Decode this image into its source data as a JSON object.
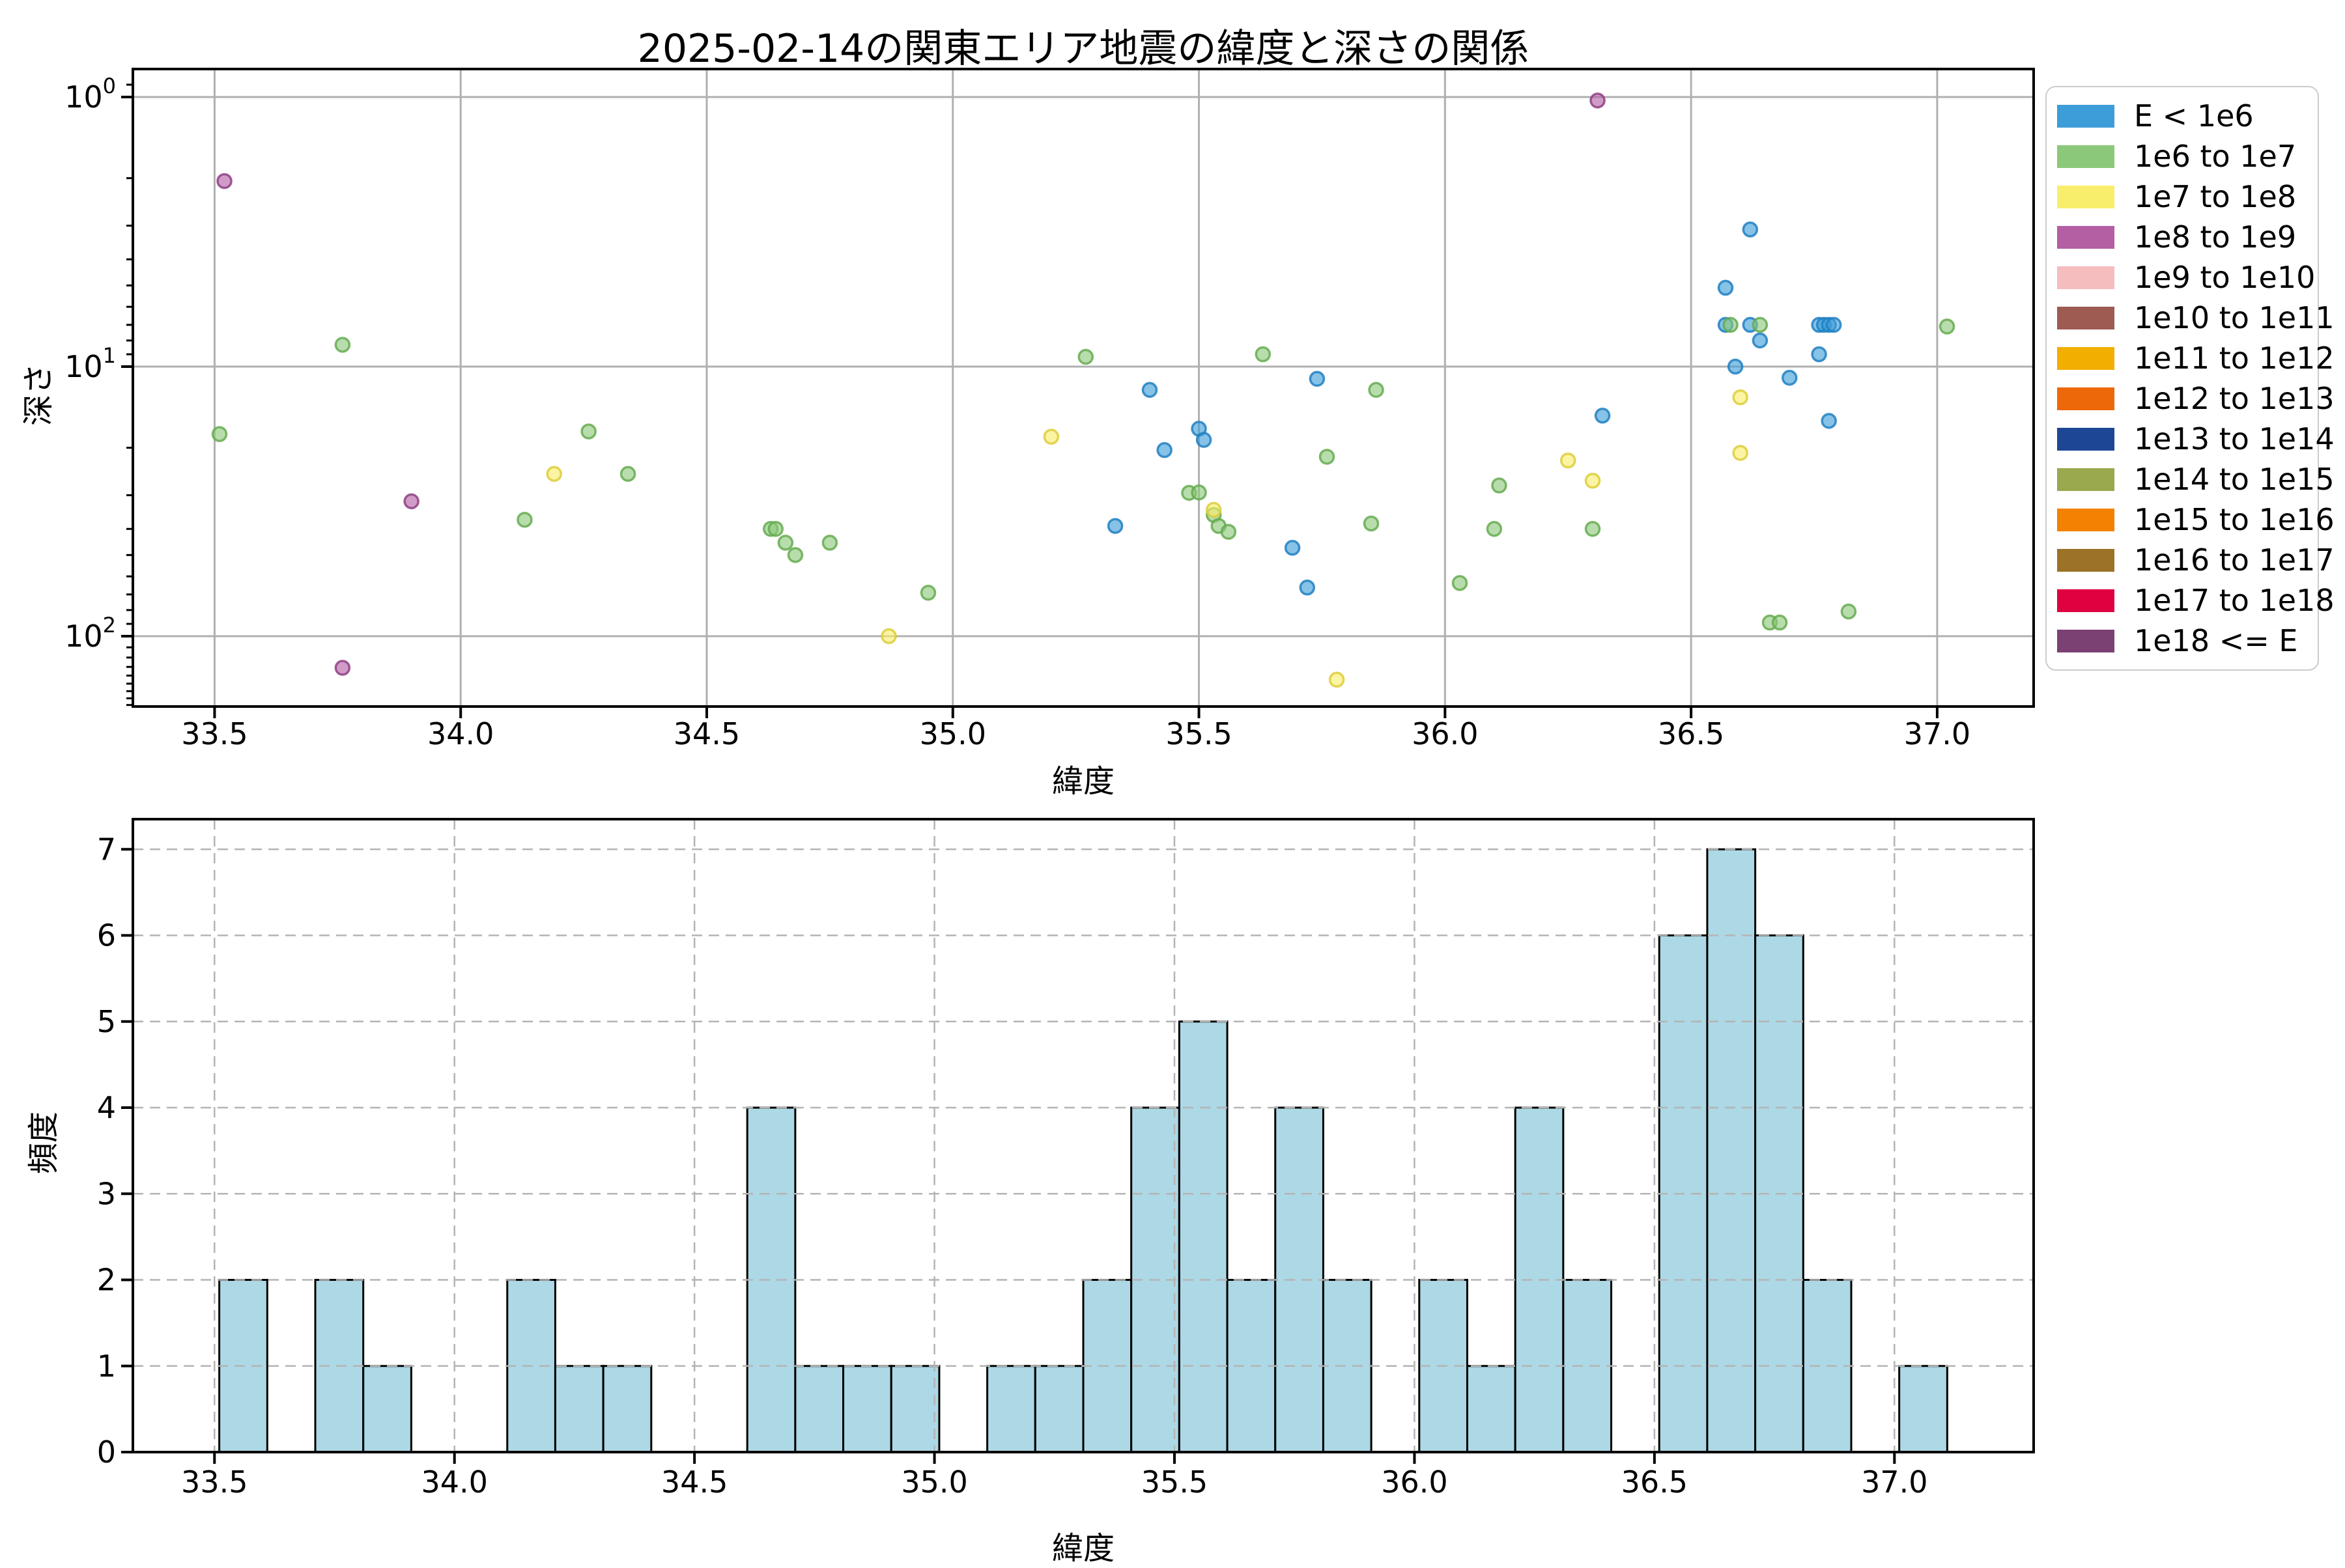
{
  "figure_title": "2025-02-14の関東エリア地震の緯度と深さの関係",
  "chart_data": [
    {
      "type": "scatter",
      "title": "2025-02-14の関東エリア地震の緯度と深さの関係",
      "xlabel": "緯度",
      "ylabel": "深さ",
      "x_ticks": [
        33.5,
        34.0,
        34.5,
        35.0,
        35.5,
        36.0,
        36.5,
        37.0
      ],
      "y_ticks": [
        1,
        10,
        100
      ],
      "xlim": [
        33.334,
        37.196
      ],
      "ylim": [
        0.79,
        182
      ],
      "y_scale": "log-inverted",
      "grid": "solid",
      "series": [
        {
          "name": "E < 1e6",
          "color": "#3d9dd8",
          "edge": "#2080c2",
          "points": [
            [
              35.33,
              39
            ],
            [
              35.4,
              12.2
            ],
            [
              35.43,
              20.4
            ],
            [
              35.5,
              17.0
            ],
            [
              35.51,
              18.7
            ],
            [
              35.69,
              47
            ],
            [
              35.72,
              66
            ],
            [
              35.74,
              11.1
            ],
            [
              36.32,
              15.2
            ],
            [
              36.62,
              3.1
            ],
            [
              36.57,
              5.1
            ],
            [
              36.57,
              7.0
            ],
            [
              36.62,
              7.0
            ],
            [
              36.64,
              8.0
            ],
            [
              36.76,
              7.0
            ],
            [
              36.77,
              7.0
            ],
            [
              36.78,
              7.0
            ],
            [
              36.79,
              7.0
            ],
            [
              36.76,
              9.0
            ],
            [
              36.59,
              10.0
            ],
            [
              36.7,
              11.0
            ],
            [
              36.78,
              15.9
            ]
          ]
        },
        {
          "name": "1e6 to 1e7",
          "color": "#8cc87a",
          "edge": "#66ac50",
          "points": [
            [
              33.51,
              17.8
            ],
            [
              33.76,
              8.3
            ],
            [
              34.13,
              37
            ],
            [
              34.26,
              17.4
            ],
            [
              34.34,
              25
            ],
            [
              34.63,
              40
            ],
            [
              34.64,
              40
            ],
            [
              34.66,
              45
            ],
            [
              34.68,
              50
            ],
            [
              34.75,
              45
            ],
            [
              34.95,
              69
            ],
            [
              35.27,
              9.2
            ],
            [
              35.48,
              29.4
            ],
            [
              35.5,
              29.3
            ],
            [
              35.53,
              35.5
            ],
            [
              35.54,
              39
            ],
            [
              35.56,
              41
            ],
            [
              35.63,
              9.0
            ],
            [
              35.76,
              21.6
            ],
            [
              35.85,
              38.2
            ],
            [
              35.86,
              12.2
            ],
            [
              36.03,
              63.5
            ],
            [
              36.1,
              40
            ],
            [
              36.11,
              27.6
            ],
            [
              36.3,
              40
            ],
            [
              36.58,
              7.0
            ],
            [
              36.64,
              7.0
            ],
            [
              36.66,
              89
            ],
            [
              36.68,
              89
            ],
            [
              36.82,
              81
            ],
            [
              37.02,
              7.1
            ]
          ]
        },
        {
          "name": "1e7 to 1e8",
          "color": "#f9ee6b",
          "edge": "#ddcc3a",
          "points": [
            [
              34.19,
              25
            ],
            [
              34.87,
              100
            ],
            [
              35.2,
              18.2
            ],
            [
              35.53,
              34
            ],
            [
              35.78,
              145
            ],
            [
              36.25,
              22.3
            ],
            [
              36.3,
              26.5
            ],
            [
              36.6,
              13.0
            ],
            [
              36.6,
              20.9
            ]
          ]
        },
        {
          "name": "1e8 to 1e9",
          "color": "#b45ea4",
          "edge": "#8f4184",
          "points": [
            [
              33.52,
              2.05
            ],
            [
              33.76,
              131
            ],
            [
              33.9,
              31.6
            ],
            [
              36.31,
              1.03
            ]
          ]
        }
      ]
    },
    {
      "type": "bar",
      "xlabel": "緯度",
      "ylabel": "頻度",
      "bin_start": 33.51,
      "bin_width": 0.1,
      "counts": [
        2,
        0,
        2,
        1,
        0,
        0,
        2,
        1,
        1,
        0,
        0,
        4,
        1,
        1,
        1,
        0,
        1,
        1,
        2,
        4,
        5,
        2,
        4,
        2,
        0,
        2,
        1,
        4,
        2,
        0,
        6,
        7,
        6,
        2,
        0,
        1
      ],
      "x_ticks": [
        33.5,
        34.0,
        34.5,
        35.0,
        35.5,
        36.0,
        36.5,
        37.0
      ],
      "y_ticks": [
        0,
        1,
        2,
        3,
        4,
        5,
        6,
        7
      ],
      "xlim": [
        33.33,
        37.29
      ],
      "ylim": [
        0,
        7.35
      ],
      "grid": "dashed",
      "bar_color": "#add8e6",
      "bar_edge": "#000000"
    }
  ],
  "legend": {
    "entries": [
      {
        "label": "E < 1e6",
        "color": "#3d9dd8"
      },
      {
        "label": "1e6 to 1e7",
        "color": "#8cc87a"
      },
      {
        "label": "1e7 to 1e8",
        "color": "#f9ee6b"
      },
      {
        "label": "1e8 to 1e9",
        "color": "#b45ea4"
      },
      {
        "label": "1e9 to 1e10",
        "color": "#f5bdbe"
      },
      {
        "label": "1e10 to 1e11",
        "color": "#9d5b52"
      },
      {
        "label": "1e11 to 1e12",
        "color": "#f2ae01"
      },
      {
        "label": "1e12 to 1e13",
        "color": "#ec6809"
      },
      {
        "label": "1e13 to 1e14",
        "color": "#1d4795"
      },
      {
        "label": "1e14 to 1e15",
        "color": "#9aa84e"
      },
      {
        "label": "1e15 to 1e16",
        "color": "#f38102"
      },
      {
        "label": "1e16 to 1e17",
        "color": "#9b7227"
      },
      {
        "label": "1e17 to 1e18",
        "color": "#df0140"
      },
      {
        "label": "1e18 <= E",
        "color": "#7b4173"
      }
    ]
  },
  "colors": {
    "grid": "#b0b0b0",
    "dashed_grid": "#b4b4b4",
    "spine": "#000000",
    "background": "#ffffff"
  }
}
